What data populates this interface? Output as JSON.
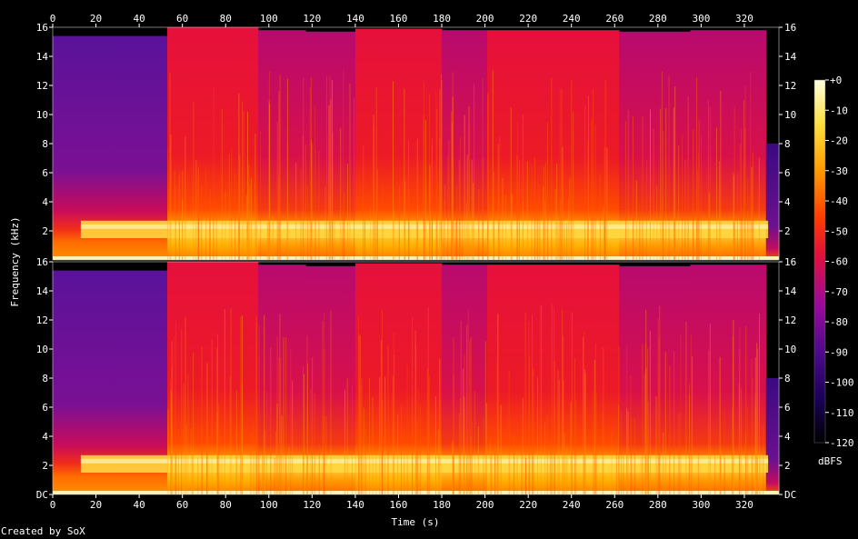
{
  "chart_data": {
    "type": "heatmap",
    "subtype": "spectrogram",
    "channels": 2,
    "xlabel": "Time (s)",
    "ylabel": "Frequency (kHz)",
    "x_ticks": [
      0,
      20,
      40,
      60,
      80,
      100,
      120,
      140,
      160,
      180,
      200,
      220,
      240,
      260,
      280,
      300,
      320
    ],
    "xlim": [
      0,
      336
    ],
    "y_ticks": [
      {
        "value": 0,
        "label": "DC"
      },
      {
        "value": 2,
        "label": "2"
      },
      {
        "value": 4,
        "label": "4"
      },
      {
        "value": 6,
        "label": "6"
      },
      {
        "value": 8,
        "label": "8"
      },
      {
        "value": 10,
        "label": "10"
      },
      {
        "value": 12,
        "label": "12"
      },
      {
        "value": 14,
        "label": "14"
      },
      {
        "value": 16,
        "label": "16"
      }
    ],
    "ylim_khz": [
      0,
      16
    ],
    "colorbar": {
      "label": "dBFS",
      "range": [
        -120,
        0
      ],
      "ticks": [
        "+0",
        "-10",
        "-20",
        "-30",
        "-40",
        "-50",
        "-60",
        "-70",
        "-80",
        "-90",
        "-100",
        "-110",
        "-120"
      ],
      "colormap": [
        "#000000",
        "#1a0058",
        "#4d0a8c",
        "#9a0a9c",
        "#e3103a",
        "#ff3c00",
        "#ff9a00",
        "#ffe040",
        "#ffffe0"
      ]
    },
    "segments": [
      {
        "start_s": 0,
        "end_s": 13,
        "level": "quiet",
        "cutoff_khz": 15.4
      },
      {
        "start_s": 13,
        "end_s": 53,
        "level": "quiet",
        "cutoff_khz": 15.4
      },
      {
        "start_s": 53,
        "end_s": 95,
        "level": "loud",
        "cutoff_khz": 16
      },
      {
        "start_s": 95,
        "end_s": 117,
        "level": "medium",
        "cutoff_khz": 15.8
      },
      {
        "start_s": 117,
        "end_s": 140,
        "level": "medium",
        "cutoff_khz": 15.7
      },
      {
        "start_s": 140,
        "end_s": 180,
        "level": "loud",
        "cutoff_khz": 15.9
      },
      {
        "start_s": 180,
        "end_s": 201,
        "level": "medium",
        "cutoff_khz": 15.8
      },
      {
        "start_s": 201,
        "end_s": 262,
        "level": "loud",
        "cutoff_khz": 15.8
      },
      {
        "start_s": 262,
        "end_s": 295,
        "level": "medium",
        "cutoff_khz": 15.7
      },
      {
        "start_s": 295,
        "end_s": 330,
        "level": "medium",
        "cutoff_khz": 15.8
      },
      {
        "start_s": 330,
        "end_s": 336,
        "level": "fade",
        "cutoff_khz": 8
      }
    ],
    "bright_band_khz": [
      1.5,
      2.7
    ]
  },
  "footer": {
    "credit": "Created by SoX"
  }
}
